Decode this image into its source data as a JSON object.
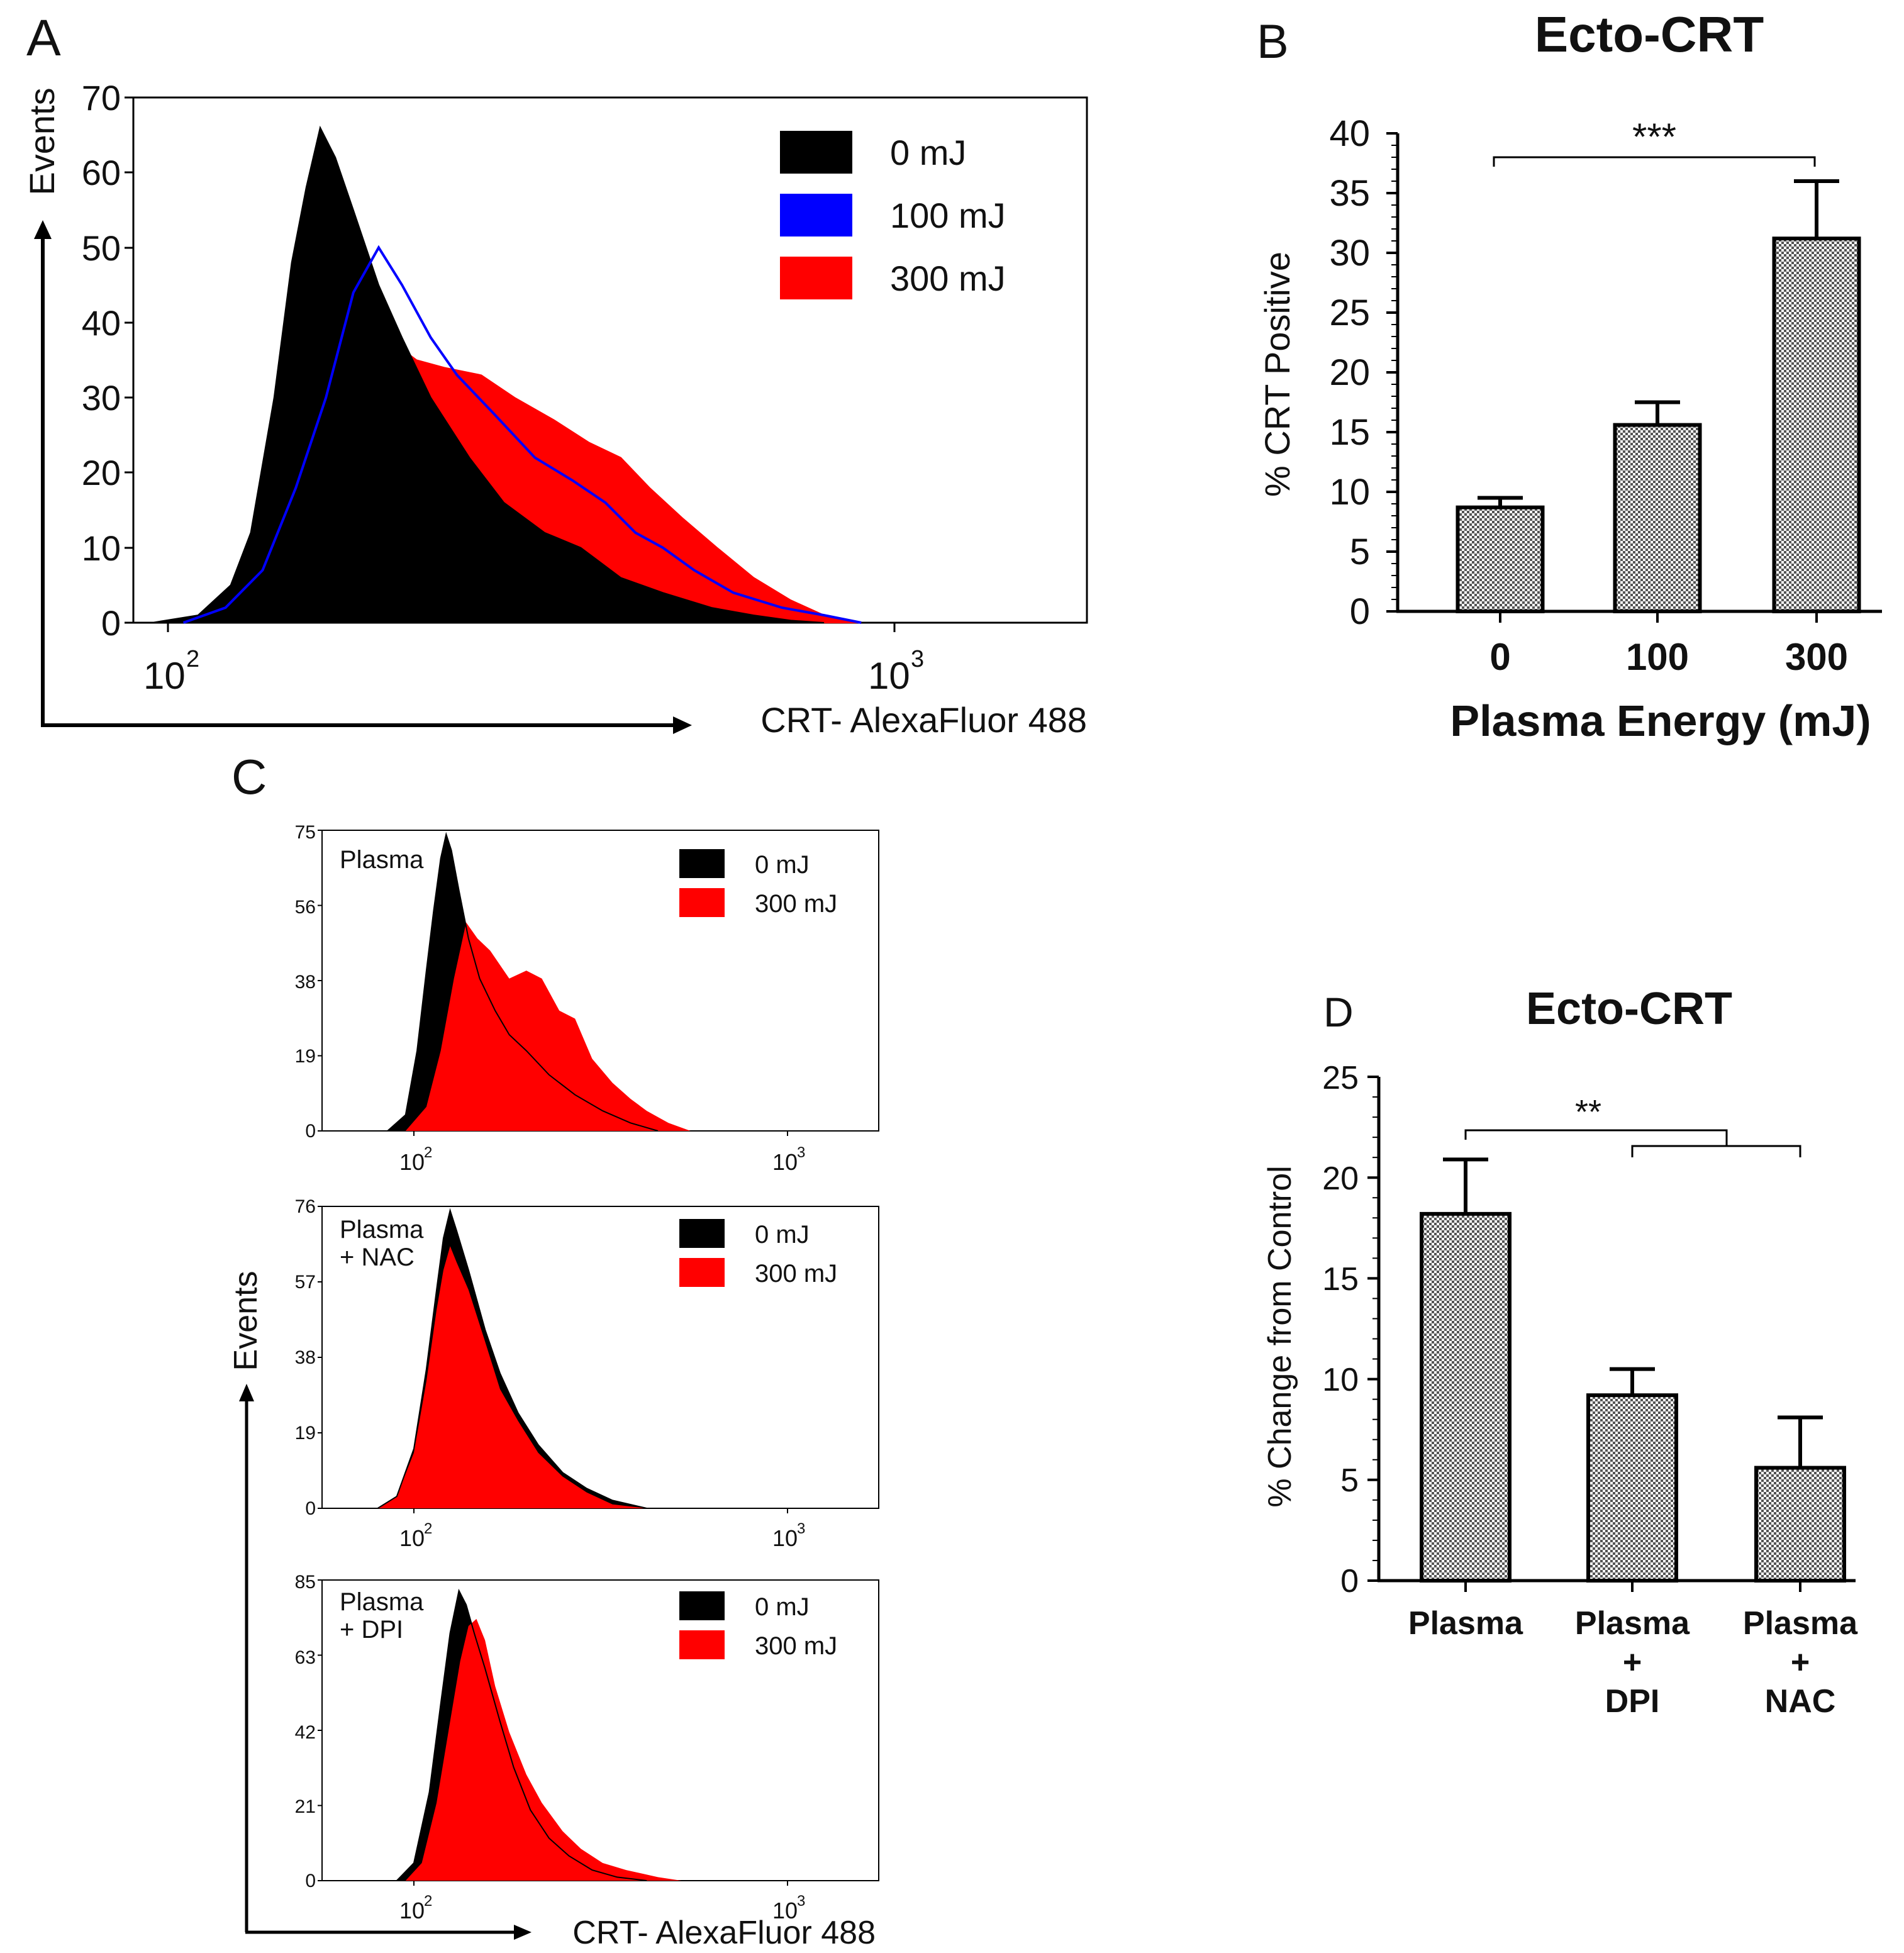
{
  "chart_data": [
    {
      "panel": "A",
      "type": "area",
      "panel_label": "A",
      "xlabel": "CRT- AlexaFluor 488",
      "ylabel": "Events",
      "x_scale": "log",
      "xlim": [
        80,
        1800
      ],
      "ylim": [
        0,
        70
      ],
      "y_ticks": [
        "0",
        "10",
        "20",
        "30",
        "40",
        "50",
        "60",
        "70"
      ],
      "x_ticks": [
        {
          "base": "10",
          "exp": "2",
          "value": 100
        },
        {
          "base": "10",
          "exp": "3",
          "value": 1000
        }
      ],
      "legend": [
        "0 mJ",
        "100 mJ",
        "300 mJ"
      ],
      "series": [
        {
          "name": "0 mJ",
          "color": "#000000",
          "style": "fill",
          "points": [
            [
              95,
              0
            ],
            [
              110,
              1
            ],
            [
              122,
              5
            ],
            [
              130,
              12
            ],
            [
              140,
              30
            ],
            [
              148,
              48
            ],
            [
              155,
              58
            ],
            [
              162,
              66
            ],
            [
              170,
              62
            ],
            [
              180,
              55
            ],
            [
              195,
              45
            ],
            [
              210,
              38
            ],
            [
              230,
              30
            ],
            [
              260,
              22
            ],
            [
              290,
              16
            ],
            [
              330,
              12
            ],
            [
              370,
              10
            ],
            [
              420,
              6
            ],
            [
              480,
              4
            ],
            [
              560,
              2
            ],
            [
              640,
              1
            ],
            [
              720,
              0.3
            ],
            [
              800,
              0
            ]
          ]
        },
        {
          "name": "100 mJ",
          "color": "#0000ff",
          "style": "line",
          "points": [
            [
              105,
              0
            ],
            [
              120,
              2
            ],
            [
              135,
              7
            ],
            [
              150,
              18
            ],
            [
              165,
              30
            ],
            [
              180,
              44
            ],
            [
              195,
              50
            ],
            [
              210,
              45
            ],
            [
              230,
              38
            ],
            [
              250,
              33
            ],
            [
              280,
              28
            ],
            [
              320,
              22
            ],
            [
              360,
              19
            ],
            [
              400,
              16
            ],
            [
              440,
              12
            ],
            [
              480,
              10
            ],
            [
              530,
              7
            ],
            [
              600,
              4
            ],
            [
              700,
              2
            ],
            [
              800,
              1
            ],
            [
              900,
              0
            ]
          ]
        },
        {
          "name": "300 mJ",
          "color": "#ff0000",
          "style": "fill",
          "points": [
            [
              105,
              0
            ],
            [
              120,
              2
            ],
            [
              135,
              6
            ],
            [
              150,
              14
            ],
            [
              165,
              22
            ],
            [
              180,
              30
            ],
            [
              200,
              38
            ],
            [
              220,
              35
            ],
            [
              240,
              34
            ],
            [
              270,
              33
            ],
            [
              300,
              30
            ],
            [
              340,
              27
            ],
            [
              380,
              24
            ],
            [
              420,
              22
            ],
            [
              460,
              18
            ],
            [
              510,
              14
            ],
            [
              570,
              10
            ],
            [
              640,
              6
            ],
            [
              720,
              3
            ],
            [
              800,
              1
            ],
            [
              900,
              0
            ]
          ]
        }
      ]
    },
    {
      "panel": "B",
      "type": "bar",
      "panel_label": "B",
      "title": "Ecto-CRT",
      "xlabel": "Plasma Energy (mJ)",
      "ylabel": "% CRT Positive",
      "categories": [
        "0",
        "100",
        "300"
      ],
      "values": [
        8.7,
        15.6,
        31.2
      ],
      "errors": [
        0.8,
        1.9,
        4.8
      ],
      "ylim": [
        0,
        40
      ],
      "y_ticks": [
        "0",
        "5",
        "10",
        "15",
        "20",
        "25",
        "30",
        "35",
        "40"
      ],
      "significance": "***"
    },
    {
      "panel": "C",
      "type": "area",
      "panel_label": "C",
      "xlabel": "CRT- AlexaFluor 488",
      "ylabel": "Events",
      "x_scale": "log",
      "legend": [
        "0 mJ",
        "300 mJ"
      ],
      "colors": {
        "0 mJ": "#000000",
        "300 mJ": "#ff0000"
      },
      "subplots": [
        {
          "label_lines": [
            "Plasma"
          ],
          "ymax": 75,
          "y_ticks": [
            "0",
            "19",
            "38",
            "56",
            "75"
          ],
          "x_ticks": [
            {
              "base": "10",
              "exp": "2",
              "value": 100
            },
            {
              "base": "10",
              "exp": "3",
              "value": 1000
            }
          ],
          "series": [
            {
              "name": "0 mJ",
              "points": [
                [
                  85,
                  0
                ],
                [
                  95,
                  4
                ],
                [
                  102,
                  20
                ],
                [
                  108,
                  40
                ],
                [
                  113,
                  55
                ],
                [
                  118,
                  68
                ],
                [
                  122,
                  74
                ],
                [
                  126,
                  70
                ],
                [
                  132,
                  60
                ],
                [
                  140,
                  48
                ],
                [
                  150,
                  38
                ],
                [
                  165,
                  30
                ],
                [
                  180,
                  24
                ],
                [
                  200,
                  20
                ],
                [
                  230,
                  14
                ],
                [
                  270,
                  9
                ],
                [
                  320,
                  5
                ],
                [
                  380,
                  2
                ],
                [
                  450,
                  0
                ]
              ]
            },
            {
              "name": "300 mJ",
              "points": [
                [
                  95,
                  0
                ],
                [
                  108,
                  6
                ],
                [
                  118,
                  20
                ],
                [
                  128,
                  38
                ],
                [
                  138,
                  52
                ],
                [
                  148,
                  48
                ],
                [
                  160,
                  45
                ],
                [
                  180,
                  38
                ],
                [
                  200,
                  40
                ],
                [
                  220,
                  38
                ],
                [
                  245,
                  30
                ],
                [
                  270,
                  28
                ],
                [
                  300,
                  18
                ],
                [
                  340,
                  12
                ],
                [
                  380,
                  8
                ],
                [
                  420,
                  5
                ],
                [
                  480,
                  2
                ],
                [
                  550,
                  0
                ]
              ]
            }
          ]
        },
        {
          "label_lines": [
            "Plasma",
            "+ NAC"
          ],
          "ymax": 76,
          "y_ticks": [
            "0",
            "19",
            "38",
            "57",
            "76"
          ],
          "x_ticks": [
            {
              "base": "10",
              "exp": "2",
              "value": 100
            },
            {
              "base": "10",
              "exp": "3",
              "value": 1000
            }
          ],
          "series": [
            {
              "name": "0 mJ",
              "points": [
                [
                  80,
                  0
                ],
                [
                  90,
                  3
                ],
                [
                  100,
                  15
                ],
                [
                  108,
                  35
                ],
                [
                  115,
                  55
                ],
                [
                  120,
                  68
                ],
                [
                  125,
                  75
                ],
                [
                  130,
                  70
                ],
                [
                  140,
                  60
                ],
                [
                  155,
                  45
                ],
                [
                  170,
                  34
                ],
                [
                  190,
                  24
                ],
                [
                  215,
                  16
                ],
                [
                  250,
                  9
                ],
                [
                  290,
                  5
                ],
                [
                  340,
                  2
                ],
                [
                  420,
                  0
                ]
              ]
            },
            {
              "name": "300 mJ",
              "points": [
                [
                  80,
                  0
                ],
                [
                  90,
                  3
                ],
                [
                  100,
                  14
                ],
                [
                  108,
                  32
                ],
                [
                  115,
                  50
                ],
                [
                  120,
                  60
                ],
                [
                  125,
                  66
                ],
                [
                  130,
                  62
                ],
                [
                  140,
                  55
                ],
                [
                  155,
                  42
                ],
                [
                  170,
                  30
                ],
                [
                  190,
                  22
                ],
                [
                  215,
                  14
                ],
                [
                  250,
                  8
                ],
                [
                  290,
                  4
                ],
                [
                  340,
                  1
                ],
                [
                  420,
                  0
                ]
              ]
            }
          ]
        },
        {
          "label_lines": [
            "Plasma",
            "+ DPI"
          ],
          "ymax": 85,
          "y_ticks": [
            "0",
            "21",
            "42",
            "63",
            "85"
          ],
          "x_ticks": [
            {
              "base": "10",
              "exp": "2",
              "value": 100
            },
            {
              "base": "10",
              "exp": "3",
              "value": 1000
            }
          ],
          "series": [
            {
              "name": "0 mJ",
              "points": [
                [
                  90,
                  0
                ],
                [
                  100,
                  5
                ],
                [
                  110,
                  25
                ],
                [
                  118,
                  50
                ],
                [
                  125,
                  70
                ],
                [
                  132,
                  82
                ],
                [
                  138,
                  78
                ],
                [
                  145,
                  70
                ],
                [
                  155,
                  60
                ],
                [
                  170,
                  45
                ],
                [
                  185,
                  32
                ],
                [
                  205,
                  20
                ],
                [
                  230,
                  12
                ],
                [
                  260,
                  7
                ],
                [
                  300,
                  3
                ],
                [
                  350,
                  1
                ],
                [
                  420,
                  0
                ]
              ]
            },
            {
              "name": "300 mJ",
              "points": [
                [
                  95,
                  0
                ],
                [
                  105,
                  5
                ],
                [
                  115,
                  22
                ],
                [
                  125,
                  45
                ],
                [
                  133,
                  62
                ],
                [
                  140,
                  72
                ],
                [
                  147,
                  74
                ],
                [
                  155,
                  68
                ],
                [
                  165,
                  55
                ],
                [
                  180,
                  42
                ],
                [
                  200,
                  30
                ],
                [
                  220,
                  22
                ],
                [
                  250,
                  14
                ],
                [
                  280,
                  9
                ],
                [
                  320,
                  5
                ],
                [
                  370,
                  3
                ],
                [
                  450,
                  1
                ],
                [
                  520,
                  0
                ]
              ]
            }
          ]
        }
      ]
    },
    {
      "panel": "D",
      "type": "bar",
      "panel_label": "D",
      "title": "Ecto-CRT",
      "ylabel": "% Change from Control",
      "categories": [
        [
          "Plasma"
        ],
        [
          "Plasma",
          "+",
          "DPI"
        ],
        [
          "Plasma",
          "+",
          "NAC"
        ]
      ],
      "values": [
        18.2,
        9.2,
        5.6
      ],
      "errors": [
        2.7,
        1.3,
        2.5
      ],
      "ylim": [
        0,
        25
      ],
      "y_ticks": [
        "0",
        "5",
        "10",
        "15",
        "20",
        "25"
      ],
      "significance": "**"
    }
  ]
}
